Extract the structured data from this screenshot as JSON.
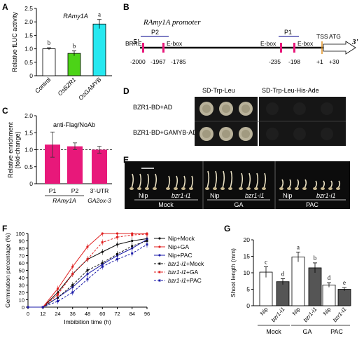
{
  "panels": {
    "A": "A",
    "B": "B",
    "C": "C",
    "D": "D",
    "E": "E",
    "F": "F",
    "G": "G"
  },
  "chart_data": [
    {
      "id": "A",
      "type": "bar",
      "title": "RAmy1A",
      "ylabel": "Relative fLUC activity",
      "ylim": [
        0,
        2.5
      ],
      "yticks": [
        "0",
        "0.5",
        "1.0",
        "1.5",
        "2.0",
        "2.5"
      ],
      "categories": [
        "Control",
        "OsBZR1",
        "OsGAMYB"
      ],
      "values": [
        1.0,
        0.83,
        1.92
      ],
      "errors": [
        0.04,
        0.09,
        0.17
      ],
      "letters": [
        "b",
        "b",
        "a"
      ],
      "colors": [
        "#ffffff",
        "#4cd317",
        "#26e8f0"
      ]
    },
    {
      "id": "C",
      "type": "bar",
      "title": "anti-Flag/NoAb",
      "ylabel": "Relative enrichment\n(fold-change)",
      "ylim": [
        0,
        2.0
      ],
      "yticks": [
        "0",
        "0.5",
        "1.0",
        "1.5",
        "2.0"
      ],
      "categories": [
        "P1",
        "P2",
        "3'-UTR"
      ],
      "groups": [
        "RAmy1A",
        "GA2ox-3"
      ],
      "values": [
        1.15,
        1.1,
        1.0
      ],
      "errors": [
        0.37,
        0.1,
        0.1
      ],
      "color": "#e8187a",
      "reference_line": 1.0
    },
    {
      "id": "F",
      "type": "line",
      "xlabel": "Imbibition time (h)",
      "ylabel": "Germination percentage (%)",
      "xlim": [
        0,
        96
      ],
      "ylim": [
        0,
        100
      ],
      "x": [
        0,
        12,
        24,
        36,
        48,
        60,
        72,
        84,
        96
      ],
      "series": [
        {
          "name": "Nip+Mock",
          "mutant": false,
          "color": "#111111",
          "dash": false,
          "values": [
            0,
            0,
            20,
            45,
            65,
            75,
            85,
            90,
            93
          ]
        },
        {
          "name": "Nip+GA",
          "mutant": false,
          "color": "#e02020",
          "dash": false,
          "values": [
            0,
            0,
            25,
            55,
            82,
            100,
            100,
            100,
            100
          ]
        },
        {
          "name": "Nip+PAC",
          "mutant": false,
          "color": "#1a1aa8",
          "dash": false,
          "values": [
            0,
            0,
            13,
            27,
            45,
            58,
            70,
            80,
            92
          ]
        },
        {
          "name": "bzr1-i1+Mock",
          "mutant": true,
          "color": "#111111",
          "dash": true,
          "values": [
            0,
            0,
            13,
            30,
            50,
            60,
            72,
            83,
            90
          ]
        },
        {
          "name": "bzr1-i1+GA",
          "mutant": true,
          "color": "#e02020",
          "dash": true,
          "values": [
            0,
            0,
            17,
            45,
            65,
            88,
            95,
            98,
            99
          ]
        },
        {
          "name": "bzr1-i1+PAC",
          "mutant": true,
          "color": "#1a1aa8",
          "dash": true,
          "values": [
            0,
            0,
            8,
            20,
            38,
            55,
            65,
            73,
            85
          ]
        }
      ],
      "errors": 4
    },
    {
      "id": "G",
      "type": "bar",
      "ylabel": "Shoot length (mm)",
      "ylim": [
        0,
        20
      ],
      "yticks": [
        "0",
        "5",
        "10",
        "15",
        "20"
      ],
      "groups": [
        "Mock",
        "GA",
        "PAC"
      ],
      "categories": [
        "Nip",
        "bzr1-i1",
        "Nip",
        "bzr1-i1",
        "Nip",
        "bzr1-i1"
      ],
      "values": [
        10.2,
        7.3,
        14.8,
        11.5,
        6.3,
        5.0
      ],
      "errors": [
        1.6,
        0.9,
        1.5,
        1.5,
        0.7,
        0.5
      ],
      "letters": [
        "c",
        "d",
        "a",
        "b",
        "d",
        "e"
      ],
      "colors": [
        "#ffffff",
        "#555555",
        "#ffffff",
        "#555555",
        "#ffffff",
        "#555555"
      ]
    }
  ],
  "diagram_B": {
    "title": "RAmy1A promoter",
    "five_prime": "5'",
    "three_prime": "3'",
    "labels": {
      "brre": "BRRE",
      "p2": "P2",
      "ebox1": "E-box",
      "p1": "P1",
      "ebox2": "E-box",
      "ebox3": "E-box",
      "tss": "TSS",
      "atg": "ATG"
    },
    "positions": [
      "-2000",
      "-1967",
      "-1785",
      "-235",
      "-198",
      "+1",
      "+30"
    ]
  },
  "panel_D": {
    "columns": [
      "SD-Trp-Leu",
      "SD-Trp-Leu-His-Ade"
    ],
    "rows": [
      "BZR1-BD+AD",
      "BZR1-BD+GAMYB-AD"
    ],
    "growth": [
      [
        true,
        false
      ],
      [
        true,
        false
      ]
    ]
  },
  "panel_E": {
    "groups": [
      "Mock",
      "GA",
      "PAC"
    ],
    "genotypes": [
      "Nip",
      "bzr1-i1"
    ]
  }
}
